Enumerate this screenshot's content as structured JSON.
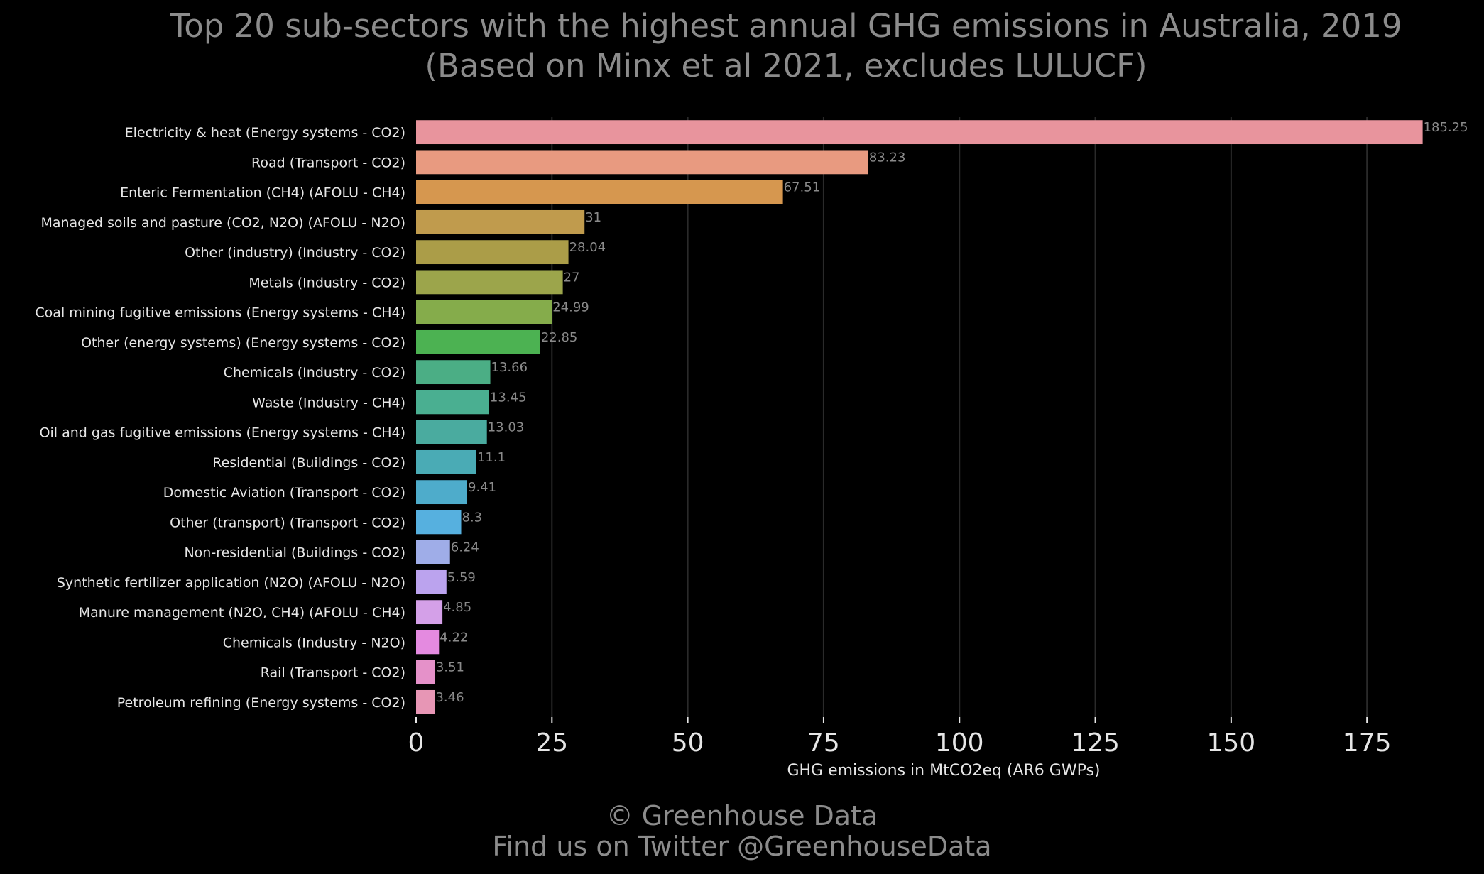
{
  "chart_data": {
    "type": "bar",
    "orientation": "horizontal",
    "title": "Top 20 sub-sectors with the highest annual GHG emissions in Australia, 2019",
    "subtitle": "(Based on Minx et al 2021, excludes LULUCF)",
    "xlabel": "GHG emissions in MtCO2eq (AR6 GWPs)",
    "ylabel": "",
    "xlim": [
      0,
      187
    ],
    "xticks": [
      0,
      25,
      50,
      75,
      100,
      125,
      150,
      175
    ],
    "grid": "vertical",
    "categories": [
      "Electricity & heat (Energy systems - CO2)",
      "Road (Transport - CO2)",
      "Enteric Fermentation (CH4) (AFOLU - CH4)",
      "Managed soils and pasture (CO2, N2O) (AFOLU - N2O)",
      "Other (industry) (Industry - CO2)",
      "Metals (Industry - CO2)",
      "Coal mining fugitive emissions (Energy systems - CH4)",
      "Other (energy systems) (Energy systems - CO2)",
      "Chemicals (Industry - CO2)",
      "Waste (Industry - CH4)",
      "Oil and gas fugitive emissions (Energy systems - CH4)",
      "Residential (Buildings - CO2)",
      "Domestic Aviation (Transport - CO2)",
      "Other (transport) (Transport - CO2)",
      "Non-residential (Buildings - CO2)",
      "Synthetic fertilizer application (N2O) (AFOLU - N2O)",
      "Manure management (N2O, CH4) (AFOLU - CH4)",
      "Chemicals (Industry - N2O)",
      "Rail  (Transport - CO2)",
      "Petroleum refining (Energy systems - CO2)"
    ],
    "values": [
      185.25,
      83.23,
      67.51,
      31,
      28.04,
      27,
      24.99,
      22.85,
      13.66,
      13.45,
      13.03,
      11.1,
      9.41,
      8.3,
      6.24,
      5.59,
      4.85,
      4.22,
      3.51,
      3.46
    ],
    "value_labels": [
      "185.25",
      "83.23",
      "67.51",
      "31",
      "28.04",
      "27",
      "24.99",
      "22.85",
      "13.66",
      "13.45",
      "13.03",
      "11.1",
      "9.41",
      "8.3",
      "6.24",
      "5.59",
      "4.85",
      "4.22",
      "3.51",
      "3.46"
    ],
    "colors": [
      "#e8949d",
      "#e89a80",
      "#d6974f",
      "#c09b4d",
      "#ab9d48",
      "#9ca54b",
      "#85ac4b",
      "#4cb252",
      "#4bae85",
      "#4aaf91",
      "#4aab9f",
      "#4aabb5",
      "#4eaccb",
      "#56b0df",
      "#9fade8",
      "#bba3ee",
      "#d4a0e8",
      "#e48ae0",
      "#e591c9",
      "#e796b5"
    ]
  },
  "footer": {
    "credit": "© Greenhouse Data",
    "twitter": "Find us on Twitter @GreenhouseData"
  },
  "background": "#000000"
}
